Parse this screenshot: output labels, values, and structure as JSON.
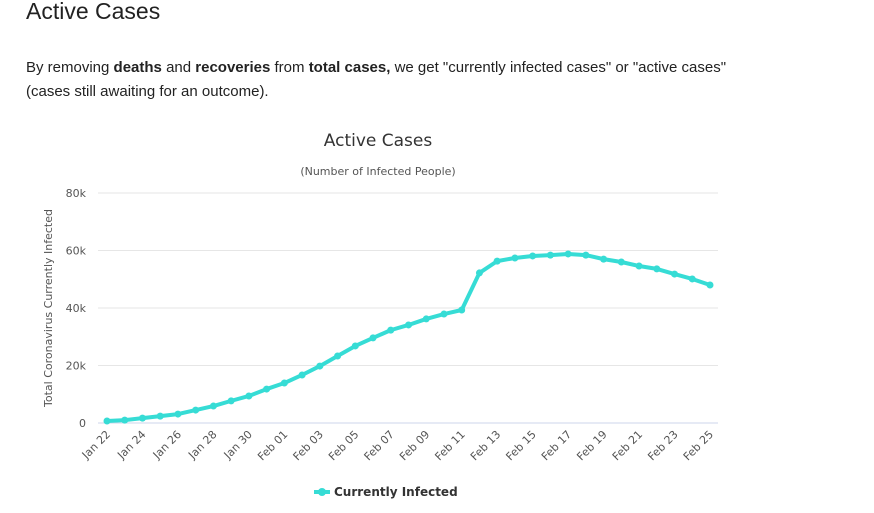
{
  "header": {
    "title": "Active Cases"
  },
  "intro": {
    "parts": [
      "By removing ",
      "deaths",
      " and ",
      "recoveries",
      " from ",
      "total cases,",
      " we get \"currently infected cases\" or \"active cases\" (cases still awaiting for an outcome)."
    ],
    "bold": [
      false,
      true,
      false,
      true,
      false,
      true,
      false
    ]
  },
  "chart_data": {
    "type": "line",
    "title": "Active Cases",
    "subtitle": "(Number of Infected People)",
    "y_label": "Total Coronavirus Currently Infected",
    "categories": [
      "Jan 22",
      null,
      "Jan 24",
      null,
      "Jan 26",
      null,
      "Jan 28",
      null,
      "Jan 30",
      null,
      "Feb 01",
      null,
      "Feb 03",
      null,
      "Feb 05",
      null,
      "Feb 07",
      null,
      "Feb 09",
      null,
      "Feb 11",
      null,
      "Feb 13",
      null,
      "Feb 15",
      null,
      "Feb 17",
      null,
      "Feb 19",
      null,
      "Feb 21",
      null,
      "Feb 23",
      null,
      "Feb 25"
    ],
    "series": [
      {
        "name": "Currently Infected",
        "color": "#36dcd5",
        "values": [
          700,
          1000,
          1700,
          2400,
          3100,
          4500,
          5900,
          7700,
          9400,
          11800,
          13900,
          16700,
          19800,
          23300,
          26800,
          29600,
          32300,
          34100,
          36200,
          37900,
          39300,
          52200,
          56300,
          57400,
          58100,
          58400,
          58800,
          58400,
          57000,
          56000,
          54600,
          53600,
          51800,
          50100,
          48000
        ]
      }
    ],
    "ylim": [
      0,
      80000
    ],
    "yticks": [
      0,
      {
        "value": 20000,
        "label": "20k"
      },
      {
        "value": 40000,
        "label": "40k"
      },
      {
        "value": 60000,
        "label": "60k"
      },
      {
        "value": 80000,
        "label": "80k"
      }
    ],
    "grid": true,
    "legend": "bottom"
  }
}
